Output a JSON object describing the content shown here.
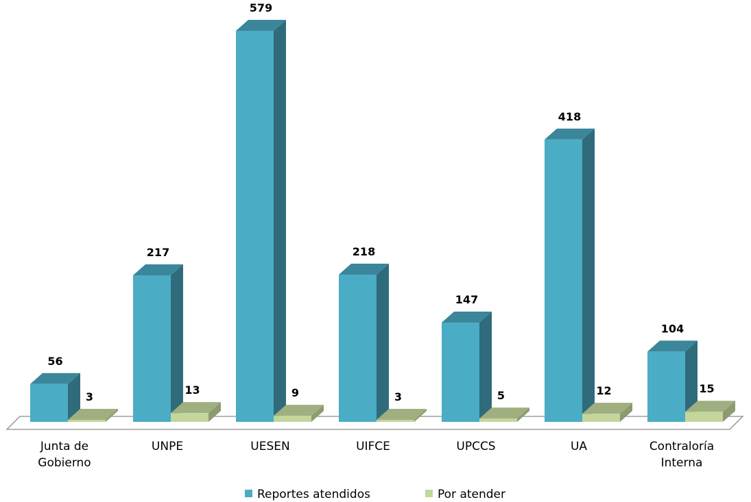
{
  "chart_data": {
    "type": "bar",
    "categories": [
      [
        "Junta de",
        "Gobierno"
      ],
      [
        "UNPE"
      ],
      [
        "UESEN"
      ],
      [
        "UIFCE"
      ],
      [
        "UPCCS"
      ],
      [
        "UA"
      ],
      [
        "Contraloría",
        "Interna"
      ]
    ],
    "series": [
      {
        "name": "Reportes atendidos",
        "values": [
          56,
          217,
          579,
          218,
          147,
          418,
          104
        ],
        "color": "#4BACC6"
      },
      {
        "name": "Por atender",
        "values": [
          3,
          13,
          9,
          3,
          5,
          12,
          15
        ],
        "color": "#C3D69B"
      }
    ],
    "title": "",
    "xlabel": "",
    "ylabel": "",
    "ylim": [
      0,
      579
    ],
    "grid": false,
    "legend_position": "bottom",
    "style": "3d-column"
  }
}
